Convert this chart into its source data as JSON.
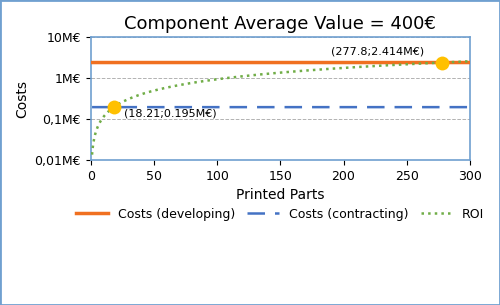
{
  "title": "Component Average Value = 400€",
  "xlabel": "Printed Parts",
  "ylabel": "Costs",
  "xlim": [
    0,
    300
  ],
  "ylim_log": [
    10000,
    10000000
  ],
  "yticks": [
    10000,
    100000,
    1000000,
    10000000
  ],
  "ytick_labels": [
    "0,01M€",
    "0,1M€",
    "1M€",
    "10M€"
  ],
  "xticks": [
    0,
    50,
    100,
    150,
    200,
    250,
    300
  ],
  "developing_cost": 2414000,
  "contracting_cost": 195000,
  "intersection1": [
    18.21,
    195000
  ],
  "intersection2": [
    277.8,
    2414000
  ],
  "annot1": "(18.21;0.195M€)",
  "annot2": "(277.8;2.414M€)",
  "color_developing": "#f07020",
  "color_contracting": "#4472c4",
  "color_roi": "#70ad47",
  "color_marker": "#ffc000",
  "legend_labels": [
    "Costs (developing)",
    "Costs (contracting)",
    "ROI"
  ],
  "border_color": "#70a0d0",
  "background_color": "#ffffff",
  "grid_color": "#aaaaaa",
  "title_fontsize": 13,
  "axis_label_fontsize": 10,
  "tick_fontsize": 9,
  "legend_fontsize": 9
}
